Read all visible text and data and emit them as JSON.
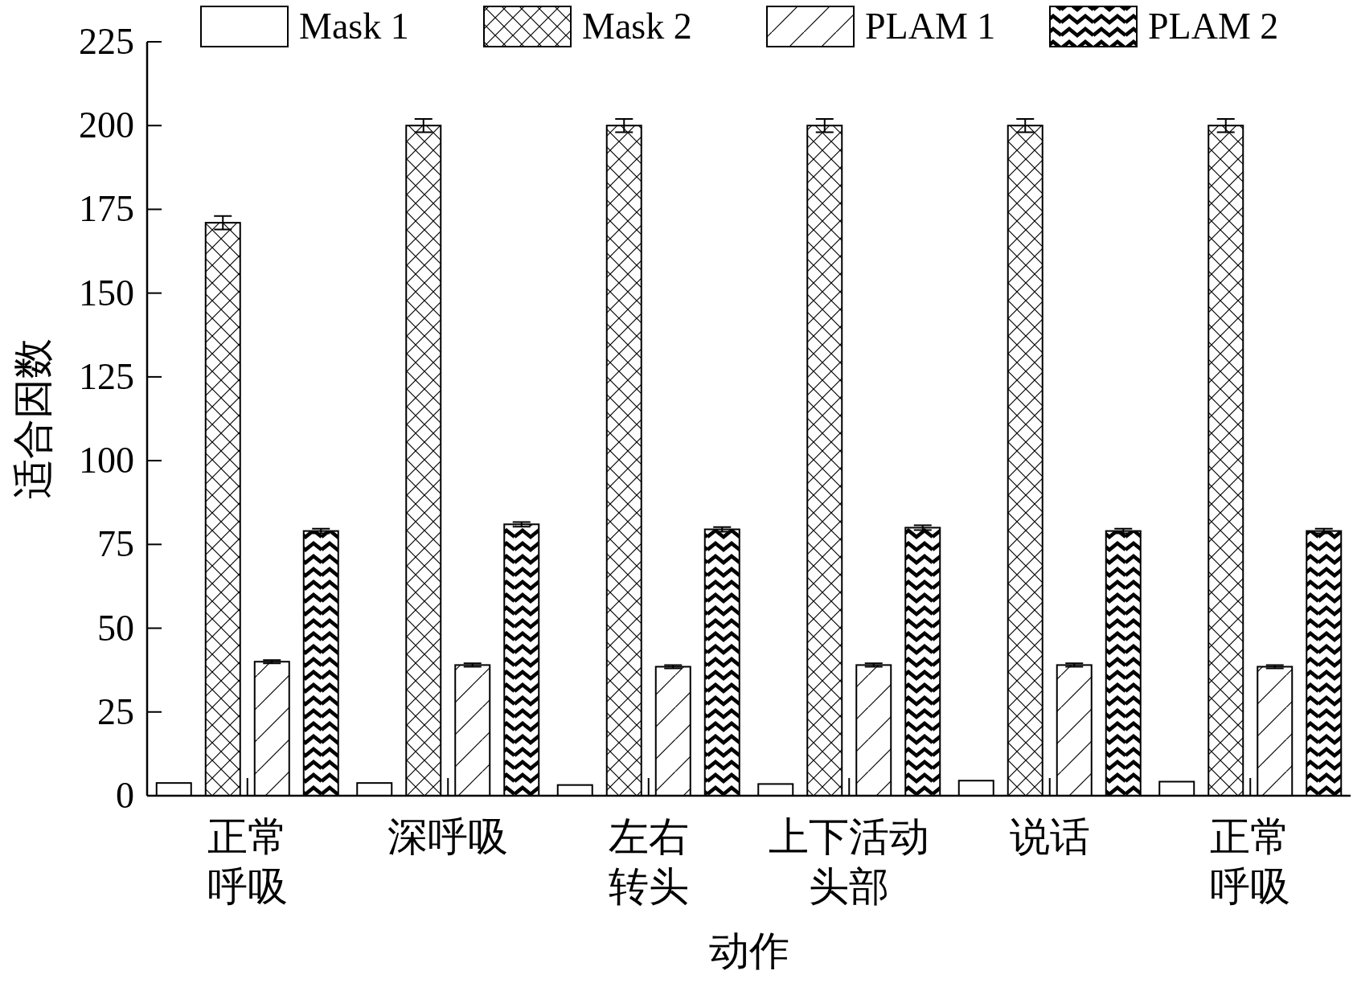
{
  "chart_data": {
    "type": "bar",
    "xlabel": "动作",
    "ylabel": "适合因数",
    "categories": [
      "正常呼吸",
      "深呼吸",
      "左右转头",
      "上下活动头部",
      "说话",
      "正常呼吸"
    ],
    "ylim": [
      0,
      225
    ],
    "yticks": [
      0,
      25,
      50,
      75,
      100,
      125,
      150,
      175,
      200,
      225
    ],
    "legend": "top",
    "grid": false,
    "series": [
      {
        "name": "Mask 1",
        "color": "#ffffff",
        "values": [
          3.8,
          3.8,
          3.2,
          3.5,
          4.5,
          4.2
        ]
      },
      {
        "name": "Mask 2",
        "color": "#000000",
        "values": [
          171,
          200,
          200,
          200,
          200,
          200
        ],
        "errors": [
          2,
          2,
          2,
          2,
          2,
          2
        ]
      },
      {
        "name": "PLAM 1",
        "color": "#000000",
        "values": [
          40,
          39,
          38.5,
          39,
          39,
          38.5
        ],
        "errors": [
          0.5,
          0.5,
          0.5,
          0.5,
          0.5,
          0.5
        ]
      },
      {
        "name": "PLAM 2",
        "color": "#000000",
        "values": [
          79,
          81,
          79.5,
          80,
          79,
          79
        ],
        "errors": [
          0.7,
          0.7,
          0.7,
          0.7,
          0.7,
          0.7
        ]
      }
    ]
  }
}
